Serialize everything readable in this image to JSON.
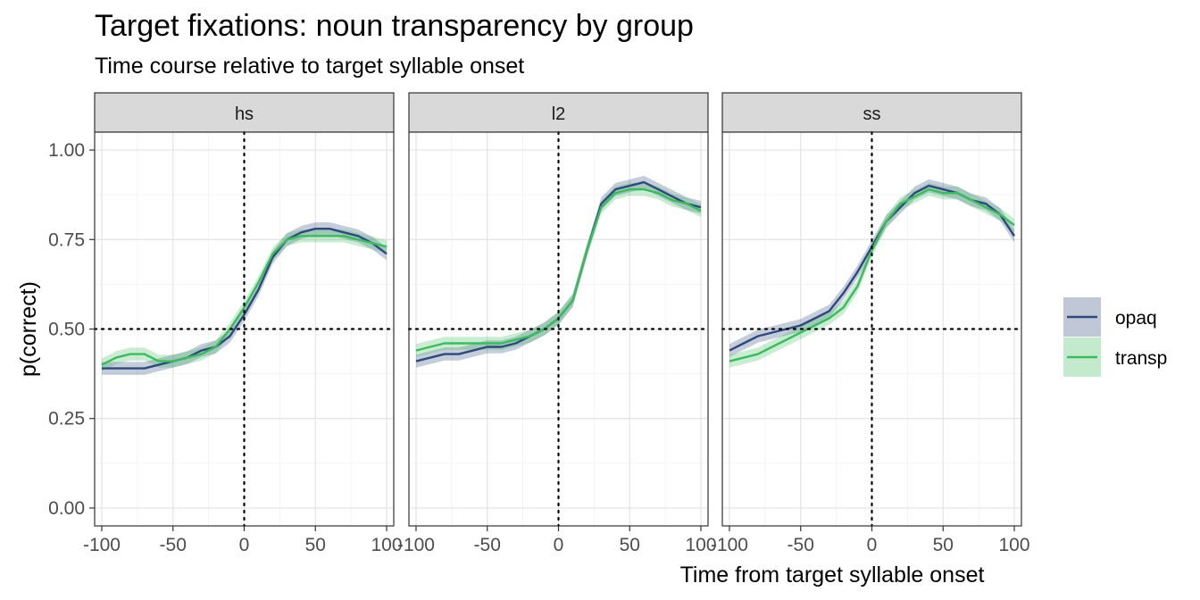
{
  "chart_data": {
    "type": "line",
    "title": "Target fixations: noun transparency by group",
    "subtitle": "Time course relative to target syllable onset",
    "xlabel": "Time from target syllable onset",
    "ylabel": "p(correct)",
    "xlim": [
      -105,
      105
    ],
    "ylim": [
      -0.05,
      1.05
    ],
    "x_ticks": [
      "-100",
      "-50",
      "0",
      "50",
      "100"
    ],
    "y_ticks": [
      "0.00",
      "0.25",
      "0.50",
      "0.75",
      "1.00"
    ],
    "reference_lines": {
      "x": 0,
      "y": 0.5
    },
    "grid": true,
    "legend_position": "right",
    "colors": {
      "opaq": "#2e4a7d",
      "transp": "#3cbb5e"
    },
    "x": [
      -100,
      -90,
      -80,
      -70,
      -60,
      -50,
      -40,
      -30,
      -20,
      -10,
      0,
      10,
      20,
      30,
      40,
      50,
      60,
      70,
      80,
      90,
      100
    ],
    "panels": [
      {
        "label": "hs",
        "series": [
          {
            "name": "opaq",
            "values": [
              0.39,
              0.39,
              0.39,
              0.39,
              0.4,
              0.41,
              0.42,
              0.44,
              0.45,
              0.48,
              0.54,
              0.61,
              0.7,
              0.75,
              0.77,
              0.78,
              0.78,
              0.77,
              0.76,
              0.74,
              0.71
            ]
          },
          {
            "name": "transp",
            "values": [
              0.4,
              0.42,
              0.43,
              0.43,
              0.41,
              0.41,
              0.42,
              0.43,
              0.45,
              0.5,
              0.56,
              0.63,
              0.71,
              0.75,
              0.76,
              0.76,
              0.76,
              0.76,
              0.75,
              0.74,
              0.73
            ]
          }
        ]
      },
      {
        "label": "l2",
        "series": [
          {
            "name": "opaq",
            "values": [
              0.41,
              0.42,
              0.43,
              0.43,
              0.44,
              0.45,
              0.45,
              0.46,
              0.48,
              0.5,
              0.53,
              0.58,
              0.72,
              0.85,
              0.89,
              0.9,
              0.91,
              0.89,
              0.87,
              0.85,
              0.84
            ]
          },
          {
            "name": "transp",
            "values": [
              0.44,
              0.45,
              0.46,
              0.46,
              0.46,
              0.46,
              0.46,
              0.47,
              0.48,
              0.5,
              0.53,
              0.58,
              0.72,
              0.84,
              0.88,
              0.89,
              0.89,
              0.88,
              0.86,
              0.85,
              0.83
            ]
          }
        ]
      },
      {
        "label": "ss",
        "series": [
          {
            "name": "opaq",
            "values": [
              0.44,
              0.46,
              0.48,
              0.49,
              0.5,
              0.51,
              0.53,
              0.55,
              0.6,
              0.66,
              0.73,
              0.8,
              0.84,
              0.88,
              0.9,
              0.89,
              0.88,
              0.86,
              0.85,
              0.82,
              0.76
            ]
          },
          {
            "name": "transp",
            "values": [
              0.41,
              0.42,
              0.43,
              0.45,
              0.47,
              0.49,
              0.51,
              0.53,
              0.56,
              0.62,
              0.72,
              0.8,
              0.85,
              0.87,
              0.89,
              0.88,
              0.88,
              0.86,
              0.84,
              0.82,
              0.79
            ]
          }
        ]
      }
    ]
  }
}
